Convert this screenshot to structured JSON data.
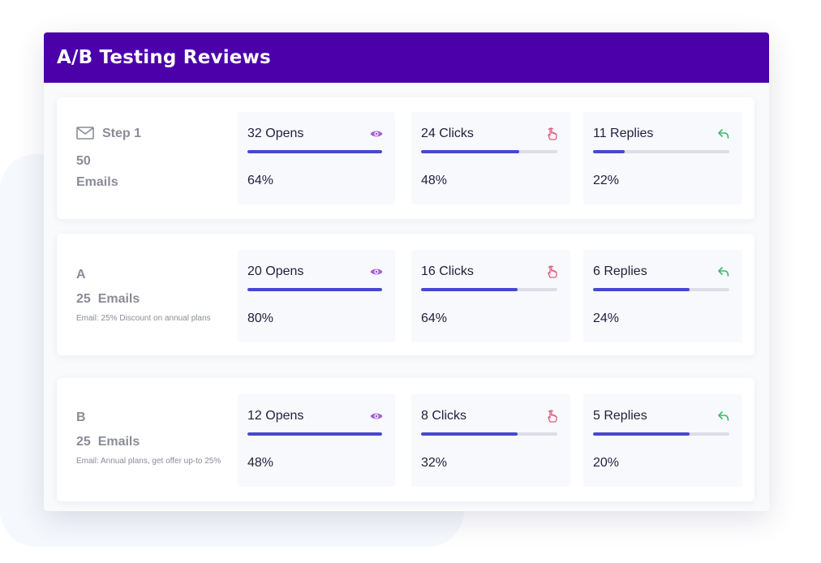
{
  "header": {
    "title": "A/B Testing Reviews"
  },
  "rows": [
    {
      "name": "Step 1",
      "count": "50",
      "count_label": "Emails",
      "icon": "mail-icon",
      "stats": [
        {
          "label": "32 Opens",
          "percent": "64%",
          "fill": 1.0,
          "icon": "eye-icon",
          "color": "#a55fd6"
        },
        {
          "label": "24 Clicks",
          "percent": "48%",
          "fill": 0.72,
          "icon": "hand-pointer-icon",
          "color": "#e35a7a"
        },
        {
          "label": "11 Replies",
          "percent": "22%",
          "fill": 0.23,
          "icon": "reply-icon",
          "color": "#3fb86b"
        }
      ]
    },
    {
      "name": "A",
      "count": "25",
      "count_label": "Emails",
      "subject": "Email: 25% Discount on annual plans",
      "stats": [
        {
          "label": "20 Opens",
          "percent": "80%",
          "fill": 1.0,
          "icon": "eye-icon",
          "color": "#a55fd6"
        },
        {
          "label": "16 Clicks",
          "percent": "64%",
          "fill": 0.71,
          "icon": "hand-pointer-icon",
          "color": "#e35a7a"
        },
        {
          "label": "6 Replies",
          "percent": "24%",
          "fill": 0.71,
          "icon": "reply-icon",
          "color": "#3fb86b"
        }
      ]
    },
    {
      "name": "B",
      "count": "25",
      "count_label": "Emails",
      "subject": "Email: Annual plans, get offer up-to 25%",
      "stats": [
        {
          "label": "12 Opens",
          "percent": "48%",
          "fill": 1.0,
          "icon": "eye-icon",
          "color": "#a55fd6"
        },
        {
          "label": "8 Clicks",
          "percent": "32%",
          "fill": 0.71,
          "icon": "hand-pointer-icon",
          "color": "#e35a7a"
        },
        {
          "label": "5 Replies",
          "percent": "20%",
          "fill": 0.71,
          "icon": "reply-icon",
          "color": "#3fb86b"
        }
      ]
    }
  ],
  "colors": {
    "header": "#4b00aa",
    "bar": "#4848cf",
    "track": "#dcdde6"
  }
}
